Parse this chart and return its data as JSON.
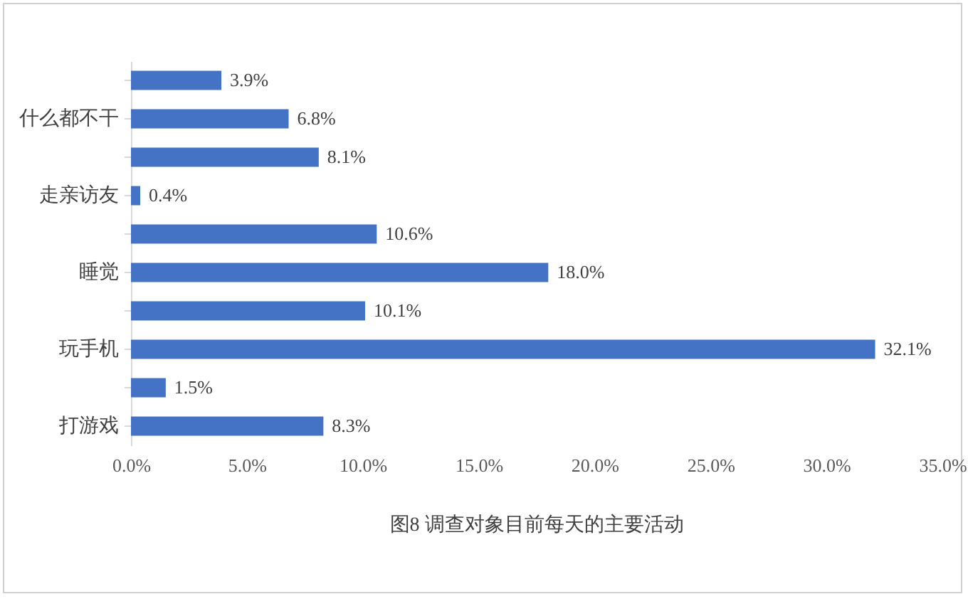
{
  "chart_data": {
    "type": "bar",
    "orientation": "horizontal",
    "title": "图8 调查对象目前每天的主要活动",
    "categories": [
      null,
      "什么都不干",
      null,
      "走亲访友",
      null,
      "睡觉",
      null,
      "玩手机",
      null,
      "打游戏"
    ],
    "values": [
      3.9,
      6.8,
      8.1,
      0.4,
      10.6,
      18.0,
      10.1,
      32.1,
      1.5,
      8.3
    ],
    "value_labels": [
      "3.9%",
      "6.8%",
      "8.1%",
      "0.4%",
      "10.6%",
      "18.0%",
      "10.1%",
      "32.1%",
      "1.5%",
      "8.3%"
    ],
    "color": "#4472c4",
    "xlim": [
      0,
      35
    ],
    "xticks": [
      {
        "value": 0,
        "label": "0.0%"
      },
      {
        "value": 5,
        "label": "5.0%"
      },
      {
        "value": 10,
        "label": "10.0%"
      },
      {
        "value": 15,
        "label": "15.0%"
      },
      {
        "value": 20,
        "label": "20.0%"
      },
      {
        "value": 25,
        "label": "25.0%"
      },
      {
        "value": 30,
        "label": "30.0%"
      },
      {
        "value": 35,
        "label": "35.0%"
      }
    ],
    "grid": false
  }
}
